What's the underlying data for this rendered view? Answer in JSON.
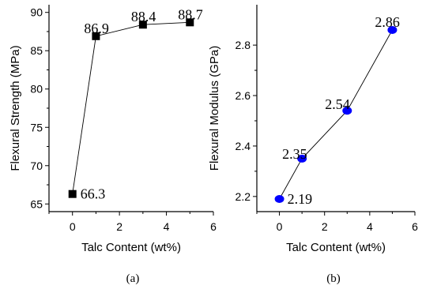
{
  "chart_data": [
    {
      "type": "line",
      "caption": "(a)",
      "xlabel": "Talc Content (wt%)",
      "ylabel": "Flexural Strength (MPa)",
      "xlim": [
        -1,
        6
      ],
      "ylim": [
        64,
        91
      ],
      "xticks": [
        "0",
        "2",
        "4",
        "6"
      ],
      "yticks": [
        "65",
        "70",
        "75",
        "80",
        "85",
        "90"
      ],
      "marker": "square",
      "marker_color": "#000000",
      "x": [
        0,
        1,
        3,
        5
      ],
      "y": [
        66.3,
        86.9,
        88.4,
        88.7
      ],
      "data_labels": [
        "66.3",
        "86.9",
        "88.4",
        "88.7"
      ]
    },
    {
      "type": "line",
      "caption": "(b)",
      "xlabel": "Talc Content (wt%)",
      "ylabel": "Flexural Modulus (GPa)",
      "xlim": [
        -1,
        6
      ],
      "ylim": [
        2.14,
        2.96
      ],
      "xticks": [
        "0",
        "2",
        "4",
        "6"
      ],
      "yticks": [
        "2.2",
        "2.4",
        "2.6",
        "2.8"
      ],
      "marker": "circle",
      "marker_color": "#0000ff",
      "x": [
        0,
        1,
        3,
        5
      ],
      "y": [
        2.19,
        2.35,
        2.54,
        2.86
      ],
      "data_labels": [
        "2.19",
        "2.35",
        "2.54",
        "2.86"
      ]
    }
  ]
}
